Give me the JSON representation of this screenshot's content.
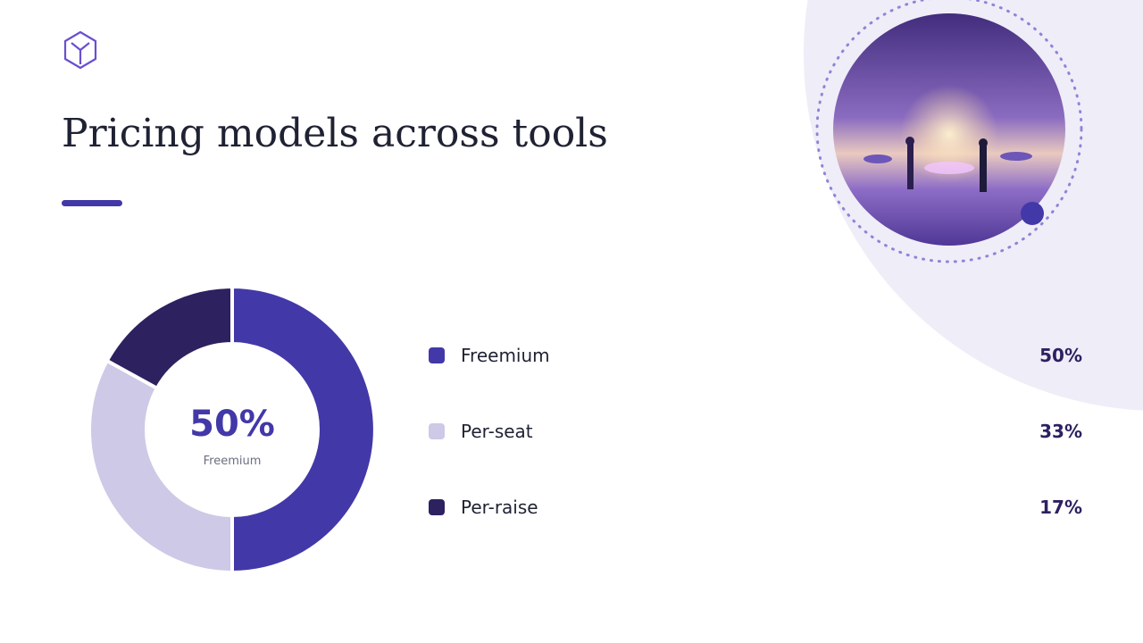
{
  "chart_data": {
    "type": "donut",
    "title": "Pricing models across tools",
    "categories": [
      "Freemium",
      "Per-seat",
      "Per-raise"
    ],
    "values": [
      50,
      33,
      17
    ],
    "value_labels": [
      "50%",
      "33%",
      "17%"
    ],
    "colors": [
      "#4338a8",
      "#cdc9e6",
      "#2d2160"
    ],
    "legend": "right"
  }
}
